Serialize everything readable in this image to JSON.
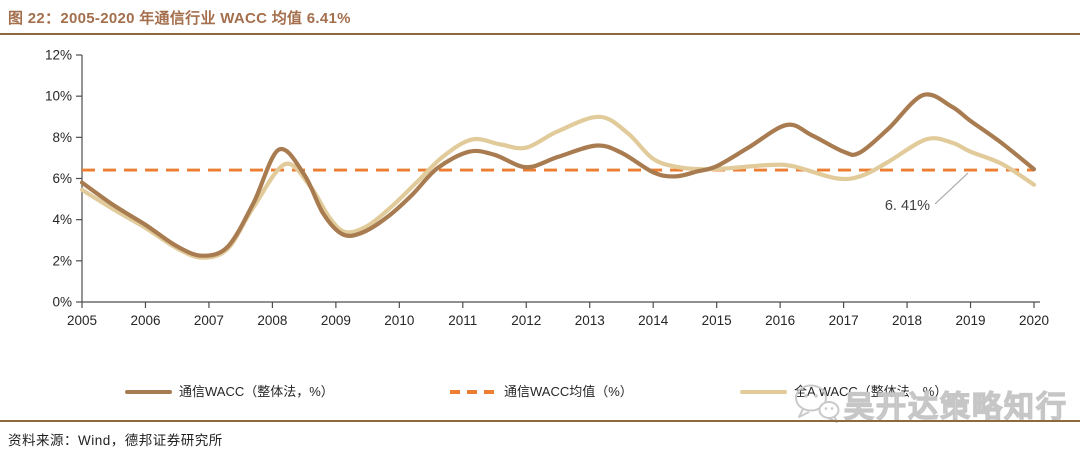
{
  "title": "图 22：2005-2020 年通信行业 WACC 均值 6.41%",
  "source": "资料来源：Wind，德邦证券研究所",
  "watermark": {
    "text": "吴开达策略知行",
    "icon": "wechat-bubbles-icon"
  },
  "colors": {
    "title": "#a46f4d",
    "rule": "#8c6a3d",
    "axis": "#4d4d4d",
    "tick_label": "#262626",
    "comm_line": "#a87c50",
    "alla_line": "#e2cb9b",
    "mean_line": "#ed7d31",
    "annotation_text": "#404040",
    "leader_line": "#a6a6a6",
    "watermark": "#c6c6c6"
  },
  "legend": {
    "items": [
      {
        "label": "通信WACC（整体法，%）",
        "style": "solid",
        "color_key": "comm_line"
      },
      {
        "label": "通信WACC均值（%）",
        "style": "dashed",
        "color_key": "mean_line"
      },
      {
        "label": "全A WACC（整体法，%）",
        "style": "solid",
        "color_key": "alla_line"
      }
    ]
  },
  "chart_data": {
    "type": "line",
    "title": "2005-2020 年通信行业 WACC 均值 6.41%",
    "xlabel": "",
    "ylabel": "",
    "grid": false,
    "legend_position": "bottom",
    "x_axis": {
      "range": [
        2005,
        2020
      ],
      "tick_values": [
        2005,
        2006,
        2007,
        2008,
        2009,
        2010,
        2011,
        2012,
        2013,
        2014,
        2015,
        2016,
        2017,
        2018,
        2019,
        2020
      ],
      "tick_labels": [
        "2005",
        "2006",
        "2007",
        "2008",
        "2009",
        "2010",
        "2011",
        "2012",
        "2013",
        "2014",
        "2015",
        "2016",
        "2017",
        "2018",
        "2019",
        "2020"
      ]
    },
    "y_axis": {
      "range": [
        0,
        12
      ],
      "unit": "%",
      "tick_values": [
        0,
        2,
        4,
        6,
        8,
        10,
        12
      ],
      "tick_labels": [
        "0%",
        "2%",
        "4%",
        "6%",
        "8%",
        "10%",
        "12%"
      ]
    },
    "mean_line": {
      "label": "通信WACC均值（%）",
      "value": 6.41,
      "style": "dashed"
    },
    "annotation": {
      "text": "6. 41%",
      "value": 6.41
    },
    "series": [
      {
        "name": "通信WACC（整体法，%）",
        "color_key": "comm_line",
        "points": [
          [
            2005.0,
            5.8
          ],
          [
            2005.5,
            4.7
          ],
          [
            2006.0,
            3.75
          ],
          [
            2006.5,
            2.7
          ],
          [
            2006.9,
            2.25
          ],
          [
            2007.3,
            2.7
          ],
          [
            2007.7,
            4.8
          ],
          [
            2008.1,
            7.4
          ],
          [
            2008.5,
            6.2
          ],
          [
            2008.8,
            4.3
          ],
          [
            2009.1,
            3.3
          ],
          [
            2009.4,
            3.35
          ],
          [
            2009.8,
            4.1
          ],
          [
            2010.2,
            5.2
          ],
          [
            2010.6,
            6.5
          ],
          [
            2011.1,
            7.3
          ],
          [
            2011.5,
            7.15
          ],
          [
            2012.0,
            6.55
          ],
          [
            2012.5,
            7.05
          ],
          [
            2013.1,
            7.6
          ],
          [
            2013.5,
            7.25
          ],
          [
            2014.0,
            6.3
          ],
          [
            2014.35,
            6.1
          ],
          [
            2014.7,
            6.35
          ],
          [
            2015.0,
            6.6
          ],
          [
            2015.5,
            7.5
          ],
          [
            2016.1,
            8.6
          ],
          [
            2016.5,
            8.1
          ],
          [
            2017.0,
            7.3
          ],
          [
            2017.25,
            7.25
          ],
          [
            2017.7,
            8.4
          ],
          [
            2018.25,
            10.05
          ],
          [
            2018.7,
            9.5
          ],
          [
            2019.0,
            8.8
          ],
          [
            2019.5,
            7.7
          ],
          [
            2020.0,
            6.45
          ]
        ]
      },
      {
        "name": "全A WACC（整体法，%）",
        "color_key": "alla_line",
        "points": [
          [
            2005.0,
            5.45
          ],
          [
            2005.5,
            4.5
          ],
          [
            2006.0,
            3.6
          ],
          [
            2006.5,
            2.6
          ],
          [
            2006.9,
            2.15
          ],
          [
            2007.3,
            2.6
          ],
          [
            2007.7,
            4.6
          ],
          [
            2008.2,
            6.7
          ],
          [
            2008.6,
            5.6
          ],
          [
            2008.9,
            4.1
          ],
          [
            2009.15,
            3.4
          ],
          [
            2009.5,
            3.7
          ],
          [
            2009.9,
            4.7
          ],
          [
            2010.3,
            5.9
          ],
          [
            2010.7,
            7.1
          ],
          [
            2011.15,
            7.9
          ],
          [
            2011.6,
            7.65
          ],
          [
            2012.0,
            7.5
          ],
          [
            2012.5,
            8.3
          ],
          [
            2013.15,
            9.0
          ],
          [
            2013.6,
            8.2
          ],
          [
            2014.0,
            6.95
          ],
          [
            2014.4,
            6.55
          ],
          [
            2014.8,
            6.45
          ],
          [
            2015.2,
            6.5
          ],
          [
            2015.8,
            6.65
          ],
          [
            2016.2,
            6.6
          ],
          [
            2016.9,
            6.0
          ],
          [
            2017.3,
            6.15
          ],
          [
            2017.7,
            6.8
          ],
          [
            2018.3,
            7.9
          ],
          [
            2018.7,
            7.75
          ],
          [
            2019.0,
            7.3
          ],
          [
            2019.5,
            6.7
          ],
          [
            2020.0,
            5.7
          ]
        ]
      }
    ]
  }
}
